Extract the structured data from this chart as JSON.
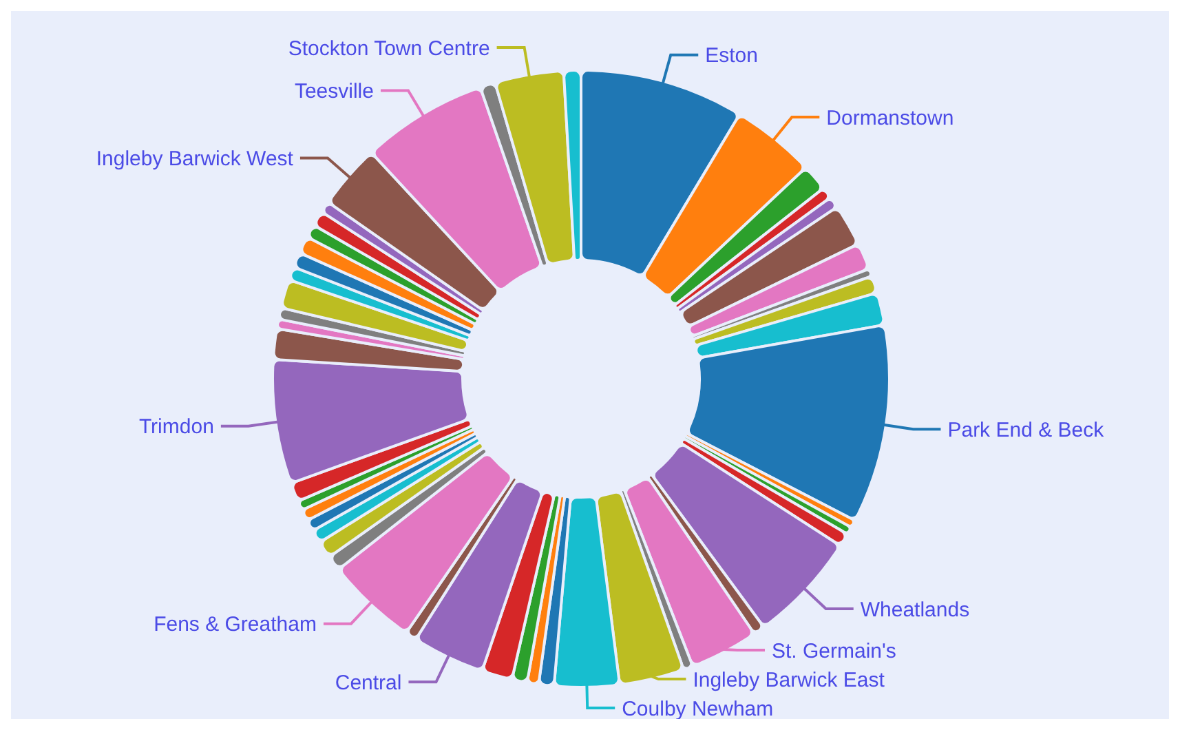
{
  "chart_data": {
    "type": "donut",
    "categories": [
      "Eston",
      "Dormanstown",
      null,
      null,
      null,
      null,
      null,
      null,
      null,
      null,
      "Park End & Beck",
      null,
      null,
      null,
      "Wheatlands",
      null,
      "St. Germain's",
      null,
      "Ingleby Barwick East",
      "Coulby Newham",
      null,
      null,
      null,
      null,
      "Central",
      null,
      "Fens & Greatham",
      null,
      null,
      null,
      null,
      null,
      null,
      null,
      "Trimdon",
      null,
      null,
      null,
      null,
      null,
      null,
      null,
      null,
      null,
      null,
      "Ingleby Barwick West",
      "Teesville",
      null,
      "Stockton Town Centre",
      null
    ],
    "values": [
      8.6,
      4.4,
      1.4,
      0.6,
      0.6,
      2.2,
      1.4,
      0.4,
      0.9,
      1.7,
      10.4,
      0.4,
      0.4,
      0.7,
      5.8,
      0.6,
      3.6,
      0.5,
      3.4,
      3.4,
      0.8,
      0.6,
      0.8,
      1.6,
      3.8,
      0.6,
      4.8,
      0.8,
      0.9,
      0.7,
      0.6,
      0.6,
      0.5,
      1.0,
      6.5,
      1.6,
      0.5,
      0.6,
      1.5,
      0.7,
      0.8,
      0.9,
      0.7,
      0.8,
      0.6,
      3.4,
      6.6,
      0.8,
      3.6,
      0.9
    ],
    "colors": [
      "#1f77b4",
      "#ff7f0e",
      "#2ca02c",
      "#d62728",
      "#9467bd",
      "#8c564b",
      "#e377c2",
      "#7f7f7f",
      "#bcbd22",
      "#17becf",
      "#1f77b4",
      "#ff7f0e",
      "#2ca02c",
      "#d62728",
      "#9467bd",
      "#8c564b",
      "#e377c2",
      "#7f7f7f",
      "#bcbd22",
      "#17becf",
      "#1f77b4",
      "#ff7f0e",
      "#2ca02c",
      "#d62728",
      "#9467bd",
      "#8c564b",
      "#e377c2",
      "#7f7f7f",
      "#bcbd22",
      "#17becf",
      "#1f77b4",
      "#ff7f0e",
      "#2ca02c",
      "#d62728",
      "#9467bd",
      "#8c564b",
      "#e377c2",
      "#7f7f7f",
      "#bcbd22",
      "#17becf",
      "#1f77b4",
      "#ff7f0e",
      "#2ca02c",
      "#d62728",
      "#9467bd",
      "#8c564b",
      "#e377c2",
      "#7f7f7f",
      "#bcbd22",
      "#17becf"
    ]
  }
}
